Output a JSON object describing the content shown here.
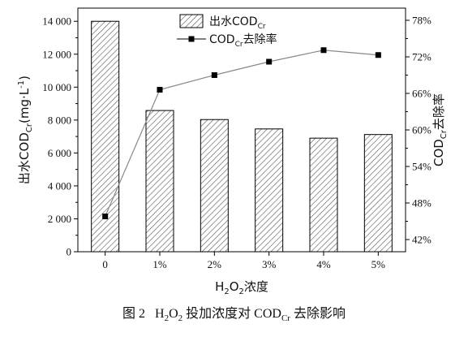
{
  "chart_data": {
    "type": "bar+line",
    "categories": [
      "0",
      "1%",
      "2%",
      "3%",
      "4%",
      "5%"
    ],
    "series": [
      {
        "name": "出水COD_Cr",
        "type": "bar",
        "axis": "left",
        "values": [
          14000,
          8580,
          8030,
          7460,
          6900,
          7120
        ]
      },
      {
        "name": "COD_Cr去除率",
        "type": "line",
        "axis": "right",
        "values": [
          45.8,
          66.6,
          69.0,
          71.2,
          73.1,
          72.3
        ]
      }
    ],
    "xlabel": {
      "main": "H",
      "sub1": "2",
      "mid": "O",
      "sub2": "2",
      "tail": "浓度"
    },
    "ylabel_left": {
      "pre": "出水COD",
      "sub": "Cr",
      "post": "(mg·L",
      "sup": "-1",
      "end": ")"
    },
    "ylabel_right": {
      "pre": "COD",
      "sub": "Cr",
      "post": "去除率"
    },
    "ylim_left": [
      0,
      14800
    ],
    "ylim_right": [
      40,
      80
    ],
    "yticks_left": [
      "0",
      "2 000",
      "4 000",
      "6 000",
      "8 000",
      "10 000",
      "12 000",
      "14 000"
    ],
    "yticks_right": [
      "42%",
      "48%",
      "54%",
      "60%",
      "66%",
      "72%",
      "78%"
    ],
    "legend": {
      "bar": {
        "pre": "出水COD",
        "sub": "Cr"
      },
      "line": {
        "pre": "COD",
        "sub": "Cr",
        "post": "去除率"
      }
    },
    "colors": {
      "bar_fill": "#ffffff",
      "bar_hatch": "#555555",
      "line": "#888888",
      "marker": "#000000"
    }
  },
  "caption": {
    "fig": "图 2",
    "p1": "H",
    "s1": "2",
    "p2": "O",
    "s2": "2",
    "p3": " 投加浓度对 COD",
    "s3": "Cr",
    "p4": " 去除影响"
  }
}
